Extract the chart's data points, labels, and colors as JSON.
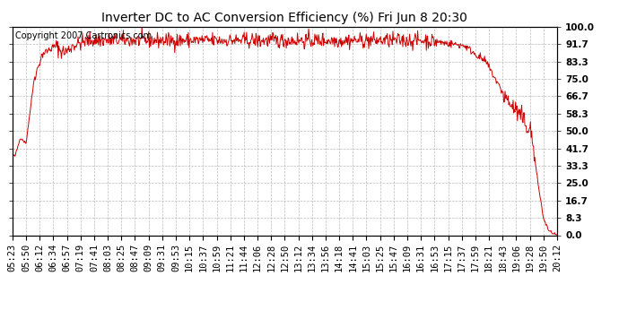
{
  "title": "Inverter DC to AC Conversion Efficiency (%) Fri Jun 8 20:30",
  "copyright": "Copyright 2007 Cartronics.com",
  "line_color": "#cc0000",
  "background_color": "#ffffff",
  "grid_color": "#bbbbbb",
  "yticks": [
    0.0,
    8.3,
    16.7,
    25.0,
    33.3,
    41.7,
    50.0,
    58.3,
    66.7,
    75.0,
    83.3,
    91.7,
    100.0
  ],
  "ylim": [
    0,
    100
  ],
  "xtick_labels": [
    "05:23",
    "05:50",
    "06:12",
    "06:34",
    "06:57",
    "07:19",
    "07:41",
    "08:03",
    "08:25",
    "08:47",
    "09:09",
    "09:31",
    "09:53",
    "10:15",
    "10:37",
    "10:59",
    "11:21",
    "11:44",
    "12:06",
    "12:28",
    "12:50",
    "13:12",
    "13:34",
    "13:56",
    "14:18",
    "14:41",
    "15:03",
    "15:25",
    "15:47",
    "16:09",
    "16:31",
    "16:53",
    "17:15",
    "17:37",
    "17:59",
    "18:21",
    "18:43",
    "19:06",
    "19:28",
    "19:50",
    "20:12"
  ],
  "line_width": 0.7,
  "title_fontsize": 10,
  "tick_fontsize": 7.5,
  "copyright_fontsize": 7
}
